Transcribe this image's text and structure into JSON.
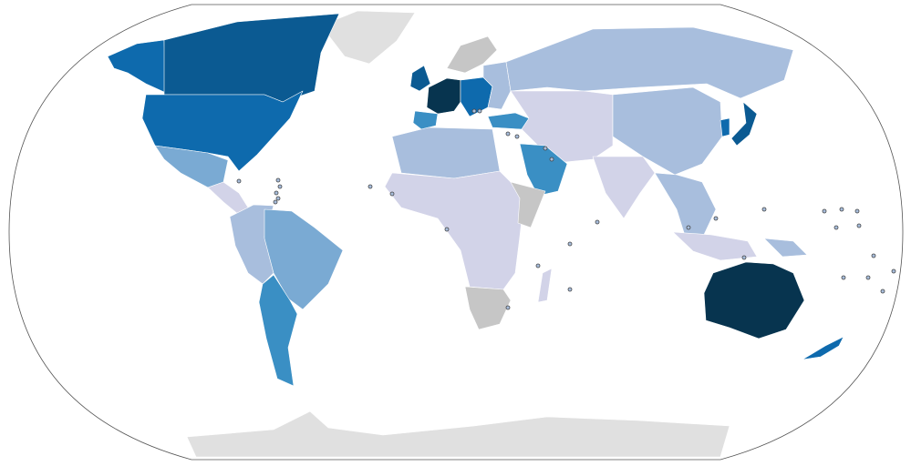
{
  "map": {
    "projection": "robinson",
    "background": "#ffffff",
    "color_scale": {
      "level_6": "#07344f",
      "level_5": "#0b5a92",
      "level_4": "#0e6aad",
      "level_3": "#3a8fc4",
      "level_2": "#7aaad3",
      "level_1": "#a8bedd",
      "level_0": "#d2d3e8",
      "no_data": "#c6c6c6",
      "not_applicable": "#e0e0e0"
    },
    "regions": [
      {
        "id": "antarctica",
        "level": "not_applicable"
      },
      {
        "id": "greenland",
        "level": "not_applicable"
      },
      {
        "id": "canada",
        "level": "level_5"
      },
      {
        "id": "alaska",
        "level": "level_4"
      },
      {
        "id": "united-states",
        "level": "level_4"
      },
      {
        "id": "mexico",
        "level": "level_2"
      },
      {
        "id": "central-america",
        "level": "level_0"
      },
      {
        "id": "western-south-america",
        "level": "level_1"
      },
      {
        "id": "brazil",
        "level": "level_2"
      },
      {
        "id": "argentina-chile",
        "level": "level_3"
      },
      {
        "id": "uk-ireland",
        "level": "level_5"
      },
      {
        "id": "france-germany",
        "level": "level_6"
      },
      {
        "id": "iberia",
        "level": "level_3"
      },
      {
        "id": "central-europe",
        "level": "level_4"
      },
      {
        "id": "scandinavia",
        "level": "no_data"
      },
      {
        "id": "eastern-europe",
        "level": "level_1"
      },
      {
        "id": "russia",
        "level": "level_1"
      },
      {
        "id": "central-asia-middle-east",
        "level": "level_0"
      },
      {
        "id": "turkey",
        "level": "level_3"
      },
      {
        "id": "saudi-arabia",
        "level": "level_3"
      },
      {
        "id": "china",
        "level": "level_1"
      },
      {
        "id": "japan",
        "level": "level_5"
      },
      {
        "id": "korea",
        "level": "level_4"
      },
      {
        "id": "india",
        "level": "level_0"
      },
      {
        "id": "north-africa",
        "level": "level_1"
      },
      {
        "id": "africa",
        "level": "level_0"
      },
      {
        "id": "horn-of-africa",
        "level": "no_data"
      },
      {
        "id": "southern-africa",
        "level": "no_data"
      },
      {
        "id": "madagascar",
        "level": "level_0"
      },
      {
        "id": "southeast-asia",
        "level": "level_1"
      },
      {
        "id": "indonesia",
        "level": "level_0"
      },
      {
        "id": "papua",
        "level": "level_1"
      },
      {
        "id": "australia",
        "level": "level_6"
      },
      {
        "id": "new-zealand",
        "level": "level_4"
      }
    ],
    "small_territory_marker_fill": "#a8bedd"
  }
}
